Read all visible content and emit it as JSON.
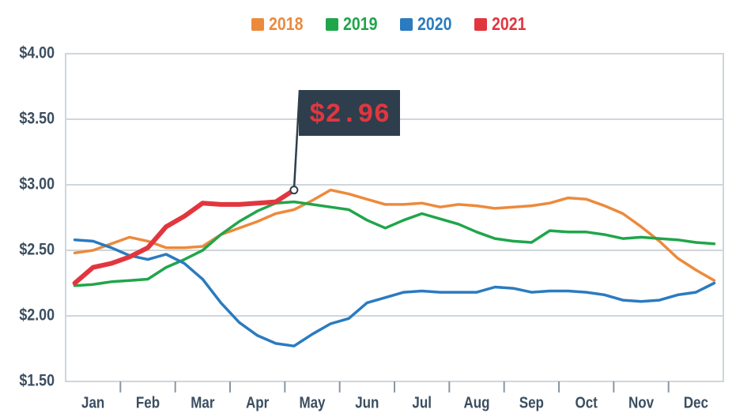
{
  "chart_data": {
    "type": "line",
    "categories": [
      null,
      "Jan",
      null,
      null,
      "Feb",
      null,
      null,
      "Mar",
      null,
      null,
      "Apr",
      null,
      null,
      "May",
      null,
      null,
      "Jun",
      null,
      null,
      "Jul",
      null,
      null,
      "Aug",
      null,
      null,
      "Sep",
      null,
      null,
      "Oct",
      null,
      null,
      "Nov",
      null,
      null,
      "Dec",
      null
    ],
    "series": [
      {
        "name": "2018",
        "color": "#ec8a3c",
        "values": [
          2.48,
          2.5,
          2.55,
          2.6,
          2.57,
          2.52,
          2.52,
          2.53,
          2.62,
          2.67,
          2.72,
          2.78,
          2.81,
          2.88,
          2.96,
          2.93,
          2.89,
          2.85,
          2.85,
          2.86,
          2.83,
          2.85,
          2.84,
          2.82,
          2.83,
          2.84,
          2.86,
          2.9,
          2.89,
          2.84,
          2.78,
          2.68,
          2.57,
          2.44,
          2.35,
          2.27
        ]
      },
      {
        "name": "2019",
        "color": "#1fa64a",
        "values": [
          2.23,
          2.24,
          2.26,
          2.27,
          2.28,
          2.37,
          2.43,
          2.5,
          2.62,
          2.72,
          2.8,
          2.86,
          2.87,
          2.85,
          2.83,
          2.81,
          2.73,
          2.67,
          2.73,
          2.78,
          2.74,
          2.7,
          2.64,
          2.59,
          2.57,
          2.56,
          2.65,
          2.64,
          2.64,
          2.62,
          2.59,
          2.6,
          2.59,
          2.58,
          2.56,
          2.55
        ]
      },
      {
        "name": "2020",
        "color": "#2a7bc0",
        "values": [
          2.58,
          2.57,
          2.52,
          2.46,
          2.43,
          2.47,
          2.4,
          2.28,
          2.1,
          1.95,
          1.85,
          1.79,
          1.77,
          1.86,
          1.94,
          1.98,
          2.1,
          2.14,
          2.18,
          2.19,
          2.18,
          2.18,
          2.18,
          2.22,
          2.21,
          2.18,
          2.19,
          2.19,
          2.18,
          2.16,
          2.12,
          2.11,
          2.12,
          2.16,
          2.18,
          2.25
        ]
      },
      {
        "name": "2021",
        "color": "#e2363f",
        "values": [
          2.25,
          2.37,
          2.4,
          2.45,
          2.52,
          2.68,
          2.76,
          2.86,
          2.85,
          2.85,
          2.86,
          2.87,
          2.96,
          null,
          null,
          null,
          null,
          null,
          null,
          null,
          null,
          null,
          null,
          null,
          null,
          null,
          null,
          null,
          null,
          null,
          null,
          null,
          null,
          null,
          null,
          null
        ]
      }
    ],
    "annotation": {
      "label": "$2.96",
      "value": 2.96
    },
    "ylim": [
      1.5,
      4.0
    ],
    "yticks": [
      {
        "value": 1.5,
        "label": "$1.50"
      },
      {
        "value": 2.0,
        "label": "$2.00"
      },
      {
        "value": 2.5,
        "label": "$2.50"
      },
      {
        "value": 3.0,
        "label": "$3.00"
      },
      {
        "value": 3.5,
        "label": "$3.50"
      },
      {
        "value": 4.0,
        "label": "$4.00"
      }
    ],
    "grid": true,
    "legend": "top"
  }
}
